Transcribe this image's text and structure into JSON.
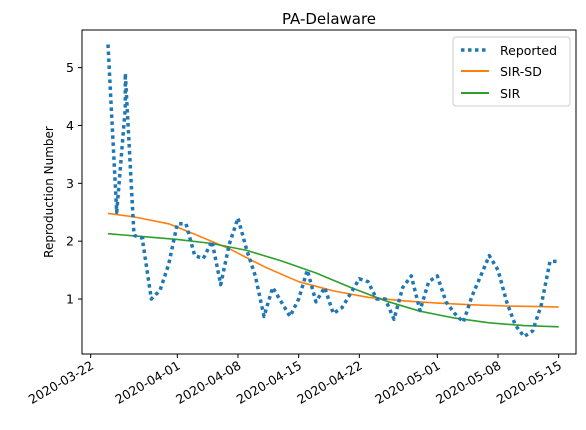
{
  "chart_data": {
    "type": "line",
    "title": "PA-Delaware",
    "ylabel": "Reproduction Number",
    "xlabel": "",
    "xlim": [
      "2020-03-21",
      "2020-05-17"
    ],
    "ylim": [
      0.05,
      5.65
    ],
    "yticks": [
      1,
      2,
      3,
      4,
      5
    ],
    "xticks": [
      "2020-03-22",
      "2020-04-01",
      "2020-04-08",
      "2020-04-15",
      "2020-04-22",
      "2020-05-01",
      "2020-05-08",
      "2020-05-15"
    ],
    "grid": false,
    "legend": "top-right",
    "series": [
      {
        "name": "Reported",
        "style": "dotted",
        "color": "#1f77b4",
        "x": [
          "2020-03-24",
          "2020-03-25",
          "2020-03-26",
          "2020-03-26",
          "2020-03-27",
          "2020-03-27",
          "2020-03-28",
          "2020-03-28",
          "2020-03-29",
          "2020-03-30",
          "2020-03-31",
          "2020-04-01",
          "2020-04-02",
          "2020-04-03",
          "2020-04-04",
          "2020-04-05",
          "2020-04-06",
          "2020-04-07",
          "2020-04-08",
          "2020-04-09",
          "2020-04-10",
          "2020-04-11",
          "2020-04-12",
          "2020-04-13",
          "2020-04-14",
          "2020-04-15",
          "2020-04-16",
          "2020-04-17",
          "2020-04-18",
          "2020-04-19",
          "2020-04-20",
          "2020-04-21",
          "2020-04-22",
          "2020-04-23",
          "2020-04-24",
          "2020-04-25",
          "2020-04-26",
          "2020-04-27",
          "2020-04-28",
          "2020-04-29",
          "2020-04-30",
          "2020-05-01",
          "2020-05-02",
          "2020-05-03",
          "2020-05-04",
          "2020-05-05",
          "2020-05-06",
          "2020-05-07",
          "2020-05-08",
          "2020-05-09",
          "2020-05-10",
          "2020-05-11",
          "2020-05-12",
          "2020-05-13",
          "2020-05-14",
          "2020-05-15"
        ],
        "y": [
          5.4,
          2.5,
          4.3,
          4.9,
          2.1,
          2.1,
          2.05,
          2.0,
          1.0,
          1.15,
          1.6,
          2.3,
          2.3,
          1.75,
          1.7,
          2.0,
          1.25,
          1.95,
          2.4,
          1.85,
          1.4,
          0.7,
          1.2,
          0.95,
          0.7,
          1.0,
          1.5,
          0.95,
          1.2,
          0.75,
          0.85,
          1.1,
          1.35,
          1.3,
          1.0,
          1.0,
          0.65,
          1.2,
          1.4,
          0.8,
          1.3,
          1.4,
          0.95,
          0.75,
          0.6,
          1.05,
          1.4,
          1.75,
          1.5,
          0.95,
          0.55,
          0.35,
          0.45,
          0.9,
          1.65,
          1.65
        ]
      },
      {
        "name": "SIR-SD",
        "style": "solid",
        "color": "#ff7f0e",
        "x": [
          "2020-03-24",
          "2020-03-27",
          "2020-03-31",
          "2020-04-03",
          "2020-04-07",
          "2020-04-11",
          "2020-04-15",
          "2020-04-19",
          "2020-04-23",
          "2020-04-27",
          "2020-05-01",
          "2020-05-05",
          "2020-05-09",
          "2020-05-13",
          "2020-05-15"
        ],
        "y": [
          2.48,
          2.42,
          2.3,
          2.12,
          1.87,
          1.56,
          1.3,
          1.14,
          1.03,
          0.97,
          0.93,
          0.9,
          0.88,
          0.87,
          0.86
        ]
      },
      {
        "name": "SIR",
        "style": "solid",
        "color": "#2ca02c",
        "x": [
          "2020-03-24",
          "2020-03-28",
          "2020-04-01",
          "2020-04-05",
          "2020-04-09",
          "2020-04-13",
          "2020-04-17",
          "2020-04-21",
          "2020-04-25",
          "2020-04-29",
          "2020-05-03",
          "2020-05-07",
          "2020-05-11",
          "2020-05-15"
        ],
        "y": [
          2.13,
          2.08,
          2.03,
          1.96,
          1.84,
          1.66,
          1.45,
          1.2,
          0.97,
          0.79,
          0.67,
          0.59,
          0.54,
          0.52
        ]
      }
    ]
  }
}
